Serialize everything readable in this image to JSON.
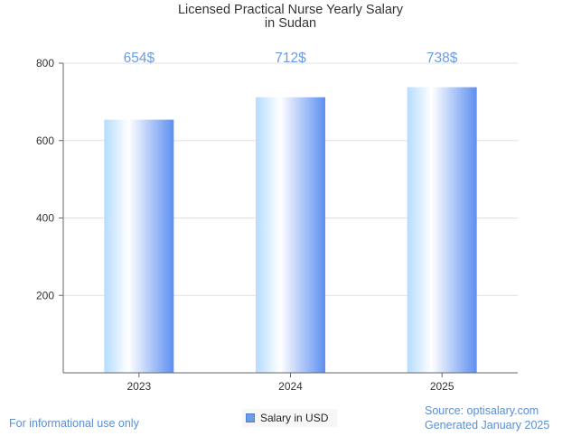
{
  "chart_data": {
    "type": "bar",
    "title": "Licensed Practical Nurse Yearly Salary",
    "subtitle": "in Sudan",
    "categories": [
      "2023",
      "2024",
      "2025"
    ],
    "series": [
      {
        "name": "Salary in USD",
        "values": [
          654,
          712,
          738
        ]
      }
    ],
    "data_labels": [
      "654$",
      "712$",
      "738$"
    ],
    "y_ticks": [
      200,
      400,
      600,
      800
    ],
    "ylim": [
      0,
      800
    ],
    "grid": true,
    "legend": "bottom-center",
    "colors": {
      "bar_light": "#ddf0ff",
      "bar_dark": "#5d8ff0",
      "label": "#6a9be3",
      "grid": "#e0e0e0"
    }
  },
  "footer": {
    "disclaimer": "For informational use only",
    "source": "Source: optisalary.com",
    "generated": "Generated January 2025"
  }
}
